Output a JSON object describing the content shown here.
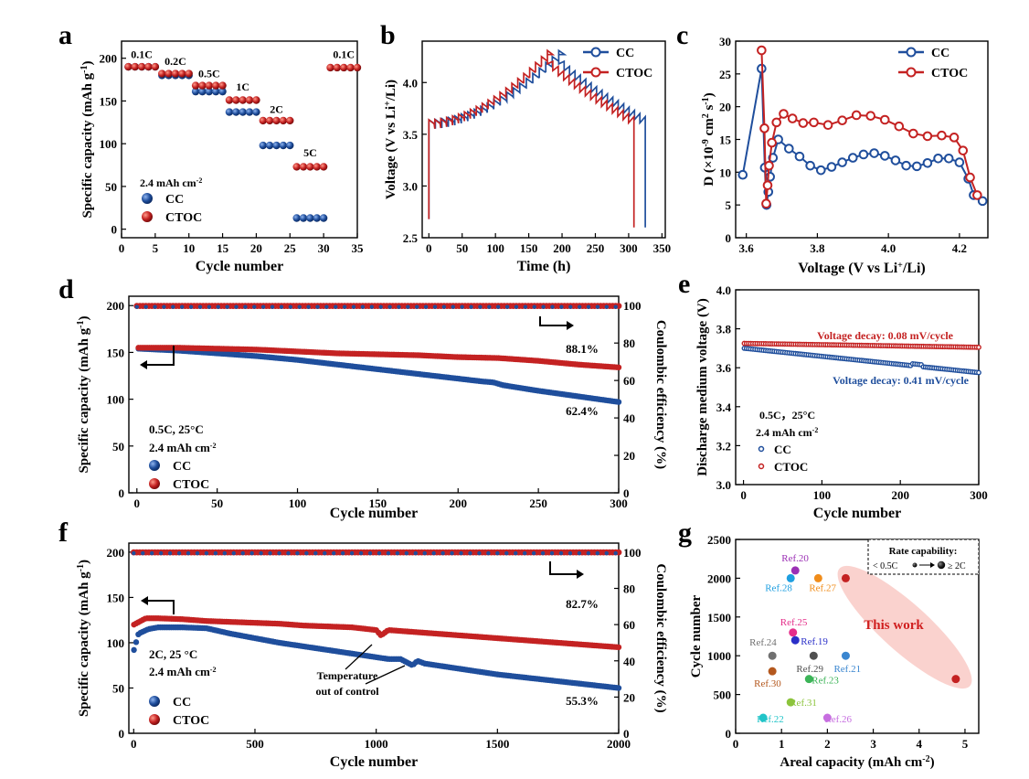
{
  "chart_data": [
    {
      "panel": "a",
      "type": "scatter",
      "xlabel": "Cycle number",
      "ylabel": "Specific capacity (mAh g",
      "ylabel_sup": "-1",
      "ylabel_tail": ")",
      "xlim": [
        0,
        35
      ],
      "ylim": [
        -10,
        220
      ],
      "xticks": [
        0,
        5,
        10,
        15,
        20,
        25,
        30,
        35
      ],
      "yticks": [
        0,
        50,
        100,
        150,
        200
      ],
      "note": "2.4 mAh cm",
      "note_sup": "-2",
      "rate_labels": [
        {
          "text": "0.1C",
          "x": 3,
          "y": 200
        },
        {
          "text": "0.2C",
          "x": 8,
          "y": 192
        },
        {
          "text": "0.5C",
          "x": 13,
          "y": 178
        },
        {
          "text": "1C",
          "x": 18,
          "y": 162
        },
        {
          "text": "2C",
          "x": 23,
          "y": 136
        },
        {
          "text": "5C",
          "x": 28,
          "y": 85
        },
        {
          "text": "0.1C",
          "x": 33,
          "y": 200
        }
      ],
      "series": [
        {
          "name": "CC",
          "color": "#1f4e9c",
          "groups": [
            {
              "x0": 1,
              "x1": 5,
              "y": 190
            },
            {
              "x0": 6,
              "x1": 10,
              "y": 180
            },
            {
              "x0": 11,
              "x1": 15,
              "y": 161
            },
            {
              "x0": 16,
              "x1": 20,
              "y": 137
            },
            {
              "x0": 21,
              "x1": 25,
              "y": 98
            },
            {
              "x0": 26,
              "x1": 30,
              "y": 13
            }
          ]
        },
        {
          "name": "CTOC",
          "color": "#c42222",
          "groups": [
            {
              "x0": 1,
              "x1": 5,
              "y": 190
            },
            {
              "x0": 6,
              "x1": 10,
              "y": 182
            },
            {
              "x0": 11,
              "x1": 15,
              "y": 168
            },
            {
              "x0": 16,
              "x1": 20,
              "y": 151
            },
            {
              "x0": 21,
              "x1": 25,
              "y": 127
            },
            {
              "x0": 26,
              "x1": 30,
              "y": 73
            },
            {
              "x0": 31,
              "x1": 35,
              "y": 189
            }
          ]
        }
      ]
    },
    {
      "panel": "b",
      "type": "line",
      "xlabel": "Time (h)",
      "ylabel": "Voltage (V vs Li",
      "ylabel_sup": "+",
      "ylabel_tail": "/Li)",
      "xlim": [
        -10,
        355
      ],
      "ylim": [
        2.5,
        4.4
      ],
      "xticks": [
        0,
        50,
        100,
        150,
        200,
        250,
        300,
        350
      ],
      "yticks": [
        2.5,
        3.0,
        3.5,
        4.0
      ],
      "series": [
        {
          "name": "CC",
          "color": "#1f4e9c",
          "charge_end": 195,
          "discharge_end": 325
        },
        {
          "name": "CTOC",
          "color": "#c42222",
          "charge_end": 178,
          "discharge_end": 308
        }
      ]
    },
    {
      "panel": "c",
      "type": "line",
      "xlabel": "Voltage (V vs Li",
      "xlabel_sup": "+",
      "xlabel_tail": "/Li)",
      "ylabel": "D (×10",
      "ylabel_sup": "-9",
      "ylabel_mid": " cm",
      "ylabel_sup2": "2",
      "ylabel_mid2": " s",
      "ylabel_sup3": "-1",
      "ylabel_tail": ")",
      "xlim": [
        3.57,
        4.28
      ],
      "ylim": [
        0,
        30
      ],
      "xticks": [
        3.6,
        3.8,
        4.0,
        4.2
      ],
      "yticks": [
        0,
        5,
        10,
        15,
        20,
        25,
        30
      ],
      "series": [
        {
          "name": "CC",
          "color": "#1f4e9c",
          "x": [
            3.59,
            3.643,
            3.652,
            3.657,
            3.662,
            3.667,
            3.675,
            3.69,
            3.72,
            3.75,
            3.78,
            3.81,
            3.84,
            3.87,
            3.9,
            3.93,
            3.96,
            3.99,
            4.02,
            4.05,
            4.08,
            4.11,
            4.14,
            4.17,
            4.2,
            4.225,
            4.24,
            4.265
          ],
          "y": [
            9.6,
            25.8,
            10.7,
            5.0,
            7.0,
            9.3,
            12.2,
            15.0,
            13.6,
            12.4,
            11.0,
            10.3,
            10.8,
            11.5,
            12.2,
            12.7,
            12.9,
            12.5,
            11.8,
            11.0,
            10.9,
            11.4,
            12.1,
            12.1,
            11.5,
            9.0,
            6.5,
            5.6
          ]
        },
        {
          "name": "CTOC",
          "color": "#c42222",
          "x": [
            3.643,
            3.651,
            3.656,
            3.66,
            3.664,
            3.672,
            3.685,
            3.705,
            3.73,
            3.76,
            3.79,
            3.83,
            3.87,
            3.91,
            3.95,
            3.99,
            4.03,
            4.07,
            4.11,
            4.15,
            4.185,
            4.21,
            4.23,
            4.25
          ],
          "y": [
            28.6,
            16.7,
            5.2,
            8.0,
            11.0,
            14.5,
            17.6,
            18.9,
            18.2,
            17.5,
            17.6,
            17.2,
            17.9,
            18.7,
            18.6,
            18.0,
            17.0,
            15.9,
            15.5,
            15.6,
            15.3,
            13.3,
            9.2,
            6.5
          ]
        }
      ]
    },
    {
      "panel": "d",
      "type": "line",
      "xlabel": "Cycle number",
      "ylabel": "Specific capacity (mAh g",
      "ylabel_sup": "-1",
      "ylabel_tail": ")",
      "y2label": "Coulombic efficiency (%)",
      "xlim": [
        -5,
        300
      ],
      "ylim": [
        0,
        210
      ],
      "y2lim": [
        0,
        105
      ],
      "xticks": [
        0,
        50,
        100,
        150,
        200,
        250,
        300
      ],
      "yticks": [
        0,
        50,
        100,
        150,
        200
      ],
      "y2ticks": [
        0,
        20,
        40,
        60,
        80,
        100
      ],
      "note": "0.5C, 25°C",
      "note2": "2.4 mAh cm",
      "note2_sup": "-2",
      "annotations": [
        "88.1%",
        "62.4%"
      ],
      "series": [
        {
          "name": "CC",
          "color": "#1f4e9c",
          "x": [
            1,
            25,
            50,
            75,
            100,
            125,
            150,
            175,
            200,
            215,
            222,
            228,
            250,
            275,
            300
          ],
          "y": [
            154,
            152,
            149,
            146,
            142,
            137,
            132,
            127,
            122,
            119,
            118,
            115,
            109,
            103,
            97
          ]
        },
        {
          "name": "CTOC",
          "color": "#c42222",
          "x": [
            1,
            25,
            50,
            75,
            100,
            125,
            150,
            175,
            200,
            225,
            250,
            275,
            300
          ],
          "y": [
            155,
            155,
            154,
            153,
            151,
            149,
            148,
            147,
            145,
            144,
            141,
            137,
            134
          ]
        }
      ],
      "ce_value": 99.8
    },
    {
      "panel": "e",
      "type": "line",
      "xlabel": "Cycle number",
      "ylabel": "Discharge medium voltage (V)",
      "xlim": [
        -10,
        300
      ],
      "ylim": [
        3.0,
        4.0
      ],
      "xticks": [
        0,
        100,
        200,
        300
      ],
      "yticks": [
        3.0,
        3.2,
        3.4,
        3.6,
        3.8,
        4.0
      ],
      "note": "0.5C，25°C",
      "note2": "2.4 mAh cm",
      "note2_sup": "-2",
      "decay_labels": [
        "Voltage decay: 0.08 mV/cycle",
        "Voltage decay: 0.41 mV/cycle"
      ],
      "series": [
        {
          "name": "CC",
          "color": "#1f4e9c",
          "x": [
            1,
            300
          ],
          "y": [
            3.7,
            3.575
          ]
        },
        {
          "name": "CTOC",
          "color": "#c42222",
          "x": [
            1,
            300
          ],
          "y": [
            3.725,
            3.705
          ]
        }
      ]
    },
    {
      "panel": "f",
      "type": "line",
      "xlabel": "Cycle number",
      "ylabel": "Specific capacity (mAh g",
      "ylabel_sup": "-1",
      "ylabel_tail": ")",
      "y2label": "Coulombic efficiency (%)",
      "xlim": [
        -20,
        2000
      ],
      "ylim": [
        0,
        210
      ],
      "y2lim": [
        0,
        105
      ],
      "xticks": [
        0,
        500,
        1000,
        1500,
        2000
      ],
      "yticks": [
        0,
        50,
        100,
        150,
        200
      ],
      "y2ticks": [
        0,
        20,
        40,
        60,
        80,
        100
      ],
      "note": "2C, 25 °C",
      "note2": "2.4 mAh cm",
      "note2_sup": "-2",
      "annotations": [
        "82.7%",
        "55.3%",
        "Temperature",
        "out of control"
      ],
      "series": [
        {
          "name": "CC",
          "color": "#1f4e9c",
          "x": [
            1,
            20,
            60,
            100,
            200,
            300,
            400,
            500,
            600,
            700,
            800,
            900,
            1000,
            1050,
            1100,
            1150,
            1170,
            1200,
            1300,
            1400,
            1500,
            1600,
            1700,
            1800,
            1900,
            2000
          ],
          "y": [
            92,
            110,
            115,
            117,
            117,
            116,
            110,
            105,
            100,
            96,
            92,
            88,
            84,
            82,
            82,
            75,
            80,
            77,
            73,
            69,
            65,
            62,
            59,
            56,
            53,
            50
          ]
        },
        {
          "name": "CTOC",
          "color": "#c42222",
          "x": [
            1,
            50,
            100,
            200,
            300,
            400,
            500,
            600,
            700,
            800,
            900,
            1000,
            1020,
            1050,
            1100,
            1200,
            1300,
            1400,
            1500,
            1600,
            1700,
            1800,
            1900,
            2000
          ],
          "y": [
            120,
            127,
            127,
            126,
            124,
            123,
            122,
            121,
            119,
            118,
            117,
            114,
            108,
            114,
            113,
            111,
            109,
            107,
            105,
            103,
            101,
            99,
            97,
            95
          ]
        }
      ],
      "ce_value": 99.9
    },
    {
      "panel": "g",
      "type": "scatter",
      "xlabel": "Areal capacity (mAh cm",
      "xlabel_sup": "-2",
      "xlabel_tail": ")",
      "ylabel": "Cycle number",
      "xlim": [
        0,
        5.3
      ],
      "ylim": [
        0,
        2500
      ],
      "xticks": [
        0,
        1,
        2,
        3,
        4,
        5
      ],
      "yticks": [
        0,
        500,
        1000,
        1500,
        2000,
        2500
      ],
      "legend_title": "Rate capability:",
      "legend_left": "< 0.5C",
      "legend_right": "≥ 2C",
      "highlight_label": "This work",
      "points": [
        {
          "label": "Ref.20",
          "x": 1.3,
          "y": 2100,
          "color": "#9b2fb5"
        },
        {
          "label": "Ref.28",
          "x": 1.2,
          "y": 2000,
          "color": "#1e9fe0"
        },
        {
          "label": "Ref.27",
          "x": 1.8,
          "y": 2000,
          "color": "#f08c1a"
        },
        {
          "label": "Ref.25",
          "x": 1.25,
          "y": 1300,
          "color": "#e52e8a"
        },
        {
          "label": "Ref.19",
          "x": 1.3,
          "y": 1200,
          "color": "#2a2fc8"
        },
        {
          "label": "Ref.24",
          "x": 0.8,
          "y": 1000,
          "color": "#707070"
        },
        {
          "label": "Ref.29",
          "x": 1.7,
          "y": 1000,
          "color": "#505050"
        },
        {
          "label": "Ref.21",
          "x": 2.4,
          "y": 1000,
          "color": "#3a86d0"
        },
        {
          "label": "Ref.30",
          "x": 0.8,
          "y": 800,
          "color": "#b4581e"
        },
        {
          "label": "Ref.23",
          "x": 1.6,
          "y": 700,
          "color": "#3cb458"
        },
        {
          "label": "Ref.31",
          "x": 1.2,
          "y": 400,
          "color": "#8cc43c"
        },
        {
          "label": "Ref.22",
          "x": 0.6,
          "y": 200,
          "color": "#21c4c8"
        },
        {
          "label": "Ref.26",
          "x": 2.0,
          "y": 200,
          "color": "#c76ee0"
        },
        {
          "label": "",
          "x": 2.4,
          "y": 2000,
          "color": "#c42222"
        },
        {
          "label": "",
          "x": 4.8,
          "y": 700,
          "color": "#c42222"
        }
      ]
    }
  ]
}
